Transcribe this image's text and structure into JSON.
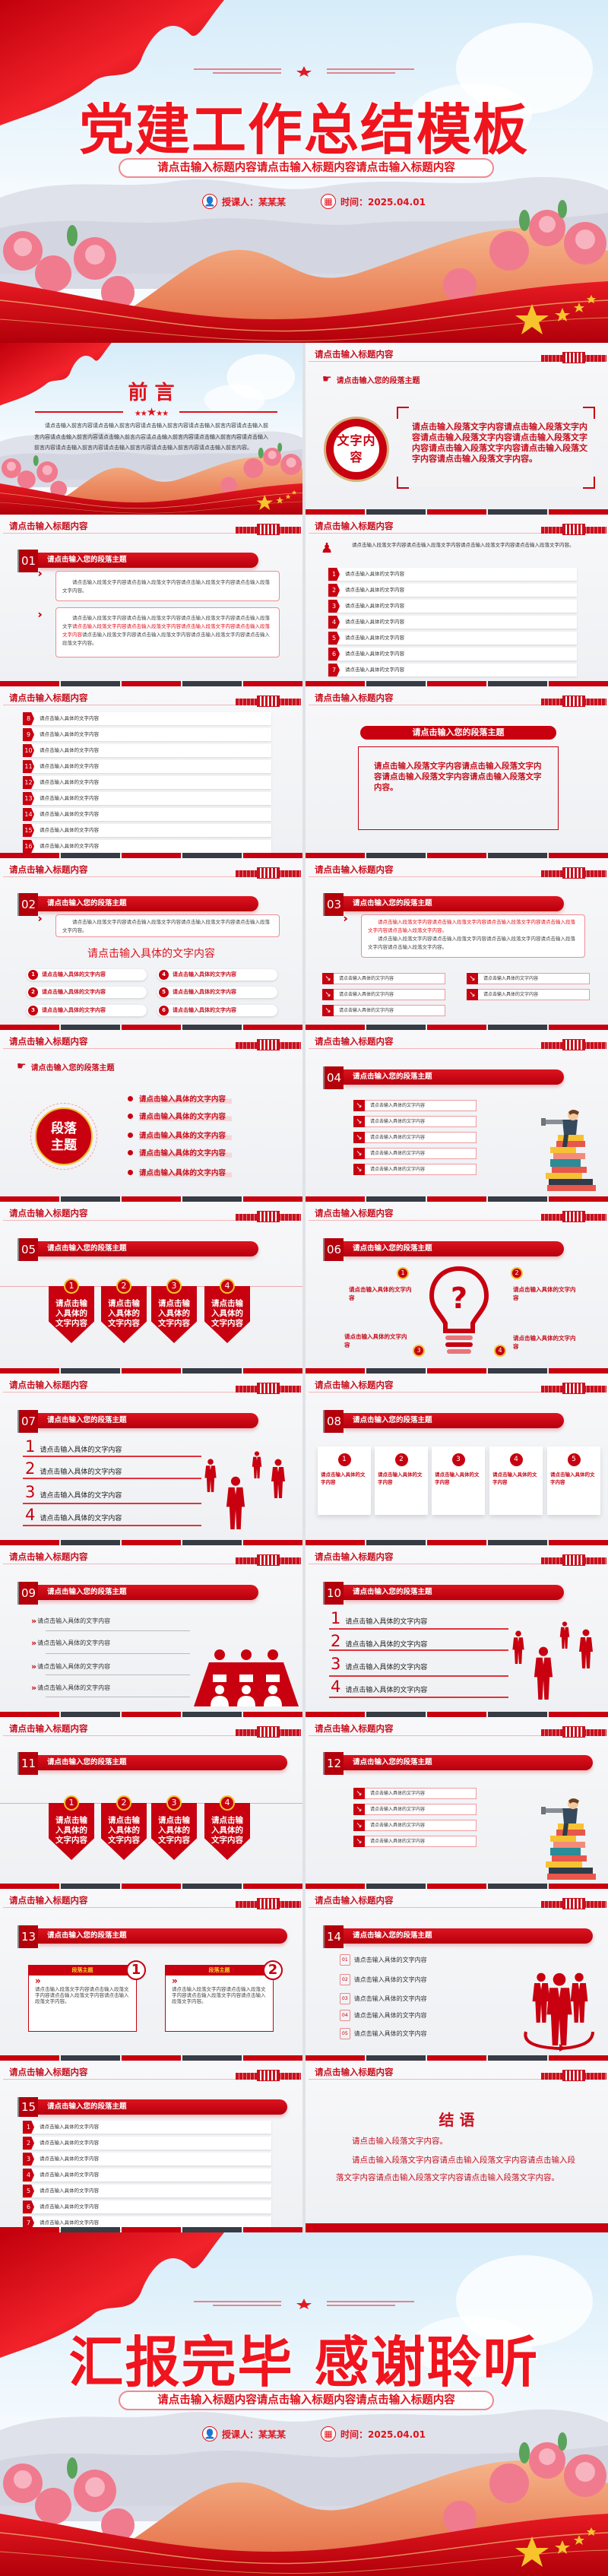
{
  "colors": {
    "primary": "#c8000f",
    "dark": "#363b44",
    "title_red": "#f0141e",
    "gold": "#f3c12a"
  },
  "cover": {
    "title": "党建工作总结模板",
    "subtitle": "请点击输入标题内容请点击输入标题内容请点击输入标题内容",
    "speaker": "授课人：某某某",
    "date": "时间：2025.04.01",
    "icons": [
      "person-icon",
      "calendar-icon"
    ]
  },
  "header_title": "请点击输入标题内容",
  "preface": {
    "title": "前 言",
    "text": "请点击输入前言内容请点击输入前言内容请点击输入前言内容请点击输入前言内容请点击输入前言内容请点击输入前言内容请点击输入前言内容请点击输入前言内容请点击输入前言内容请点击输入前言内容请点击输入前言内容请点击输入前言内容请点击输入前言内容请点击输入前言内容。"
  },
  "text_slide": {
    "theme": "请点击输入您的段落主题",
    "circle": "文字内容",
    "text": "请点击输入段落文字内容请点击输入段落文字内容请点击输入段落文字内容请点击输入段落文字内容请点击输入段落文字内容请点击输入段落文字内容请点击输入段落文字内容。"
  },
  "s01": {
    "num": "01",
    "theme": "请点击输入您的段落主题",
    "box1": "请点击输入段落文字内容请点击输入段落文字内容请点击输入段落文字内容请点击输入段落文字内容。",
    "box2_a": "请点击输入段落文字内容请点击输入段落文字内容请点击输入段落文字内容请点击输入段落文字",
    "box2_b": "请点击输入段落文字内容请点击输入段落文字内容请点击输入段落文字内容请点击输入段落文字内容",
    "box2_c": "请点击输入段落文字内容请点击输入段落文字内容请点击输入段落文字内容请点击输入段落文字内容。"
  },
  "list1": {
    "intro": "请点击输入段落文字内容请点击输入段落文字内容请点击输入段落文字内容请点击输入段落文字内容。",
    "items": [
      {
        "n": "1",
        "t": "请点击输入具体的文字内容"
      },
      {
        "n": "2",
        "t": "请点击输入具体的文字内容"
      },
      {
        "n": "3",
        "t": "请点击输入具体的文字内容"
      },
      {
        "n": "4",
        "t": "请点击输入具体的文字内容"
      },
      {
        "n": "5",
        "t": "请点击输入具体的文字内容"
      },
      {
        "n": "6",
        "t": "请点击输入具体的文字内容"
      },
      {
        "n": "7",
        "t": "请点击输入具体的文字内容"
      }
    ]
  },
  "list2": {
    "items": [
      {
        "n": "8",
        "t": "请点击输入具体的文字内容"
      },
      {
        "n": "9",
        "t": "请点击输入具体的文字内容"
      },
      {
        "n": "10",
        "t": "请点击输入具体的文字内容"
      },
      {
        "n": "11",
        "t": "请点击输入具体的文字内容"
      },
      {
        "n": "12",
        "t": "请点击输入具体的文字内容"
      },
      {
        "n": "13",
        "t": "请点击输入具体的文字内容"
      },
      {
        "n": "14",
        "t": "请点击输入具体的文字内容"
      },
      {
        "n": "15",
        "t": "请点击输入具体的文字内容"
      },
      {
        "n": "16",
        "t": "请点击输入具体的文字内容"
      }
    ]
  },
  "theme_box": {
    "theme": "请点击输入您的段落主题",
    "text": "请点击输入段落文字内容请点击输入段落文字内容请点击输入段落文字内容请点击输入段落文字内容。"
  },
  "s02": {
    "num": "02",
    "theme": "请点击输入您的段落主题",
    "box": "请点击输入段落文字内容请点击输入段落文字内容请点击输入段落文字内容请点击输入段落文字内容。",
    "heading": "请点击输入具体的文字内容",
    "pills": [
      {
        "n": "1",
        "t": "请点击输入具体的文字内容"
      },
      {
        "n": "2",
        "t": "请点击输入具体的文字内容"
      },
      {
        "n": "3",
        "t": "请点击输入具体的文字内容"
      },
      {
        "n": "4",
        "t": "请点击输入具体的文字内容"
      },
      {
        "n": "5",
        "t": "请点击输入具体的文字内容"
      },
      {
        "n": "6",
        "t": "请点击输入具体的文字内容"
      }
    ]
  },
  "s03": {
    "num": "03",
    "theme": "请点击输入您的段落主题",
    "box_red": "请点击输入段落文字内容请点击输入段落文字内容请点击输入段落文字内容请点击输入段落文字内容请点击输入段落文字内容。",
    "box_dark": "请点击输入段落文字内容请点击输入段落文字内容请点击输入段落文字内容请点击输入段落文字内容请点击输入段落文字内容。",
    "items_left": [
      "请点击输入具体的文字内容",
      "请点击输入具体的文字内容",
      "请点击输入具体的文字内容"
    ],
    "items_right": [
      "请点击输入具体的文字内容",
      "请点击输入具体的文字内容"
    ]
  },
  "para_theme": {
    "theme": "请点击输入您的段落主题",
    "circle": "段落主题",
    "bullets": [
      "请点击输入具体的文字内容",
      "请点击输入具体的文字内容",
      "请点击输入具体的文字内容",
      "请点击输入具体的文字内容",
      "请点击输入具体的文字内容"
    ]
  },
  "s04": {
    "num": "04",
    "theme": "请点击输入您的段落主题",
    "items": [
      "请点击输入具体的文字内容",
      "请点击输入具体的文字内容",
      "请点击输入具体的文字内容",
      "请点击输入具体的文字内容",
      "请点击输入具体的文字内容"
    ]
  },
  "s05": {
    "num": "05",
    "theme": "请点击输入您的段落主题",
    "shields": [
      {
        "n": "1",
        "t": "请点击输入具体的文字内容"
      },
      {
        "n": "2",
        "t": "请点击输入具体的文字内容"
      },
      {
        "n": "3",
        "t": "请点击输入具体的文字内容"
      },
      {
        "n": "4",
        "t": "请点击输入具体的文字内容"
      }
    ]
  },
  "s06": {
    "num": "06",
    "theme": "请点击输入您的段落主题",
    "symbol": "?",
    "labels": [
      {
        "n": "1",
        "t": "请点击输入具体的文字内容"
      },
      {
        "n": "2",
        "t": "请点击输入具体的文字内容"
      },
      {
        "n": "3",
        "t": "请点击输入具体的文字内容"
      },
      {
        "n": "4",
        "t": "请点击输入具体的文字内容"
      }
    ]
  },
  "s07": {
    "num": "07",
    "theme": "请点击输入您的段落主题",
    "items": [
      {
        "n": "1",
        "t": "请点击输入具体的文字内容"
      },
      {
        "n": "2",
        "t": "请点击输入具体的文字内容"
      },
      {
        "n": "3",
        "t": "请点击输入具体的文字内容"
      },
      {
        "n": "4",
        "t": "请点击输入具体的文字内容"
      }
    ]
  },
  "s08": {
    "num": "08",
    "theme": "请点击输入您的段落主题",
    "cards": [
      {
        "n": "1",
        "t": "请点击输入具体的文字内容"
      },
      {
        "n": "2",
        "t": "请点击输入具体的文字内容"
      },
      {
        "n": "3",
        "t": "请点击输入具体的文字内容"
      },
      {
        "n": "4",
        "t": "请点击输入具体的文字内容"
      },
      {
        "n": "5",
        "t": "请点击输入具体的文字内容"
      }
    ]
  },
  "s09": {
    "num": "09",
    "theme": "请点击输入您的段落主题",
    "items": [
      "请点击输入具体的文字内容",
      "请点击输入具体的文字内容",
      "请点击输入具体的文字内容",
      "请点击输入具体的文字内容"
    ]
  },
  "s10": {
    "num": "10",
    "theme": "请点击输入您的段落主题",
    "items": [
      {
        "n": "1",
        "t": "请点击输入具体的文字内容"
      },
      {
        "n": "2",
        "t": "请点击输入具体的文字内容"
      },
      {
        "n": "3",
        "t": "请点击输入具体的文字内容"
      },
      {
        "n": "4",
        "t": "请点击输入具体的文字内容"
      }
    ]
  },
  "s11": {
    "num": "11",
    "theme": "请点击输入您的段落主题",
    "shields": [
      {
        "n": "1",
        "t": "请点击输入具体的文字内容"
      },
      {
        "n": "2",
        "t": "请点击输入具体的文字内容"
      },
      {
        "n": "3",
        "t": "请点击输入具体的文字内容"
      },
      {
        "n": "4",
        "t": "请点击输入具体的文字内容"
      }
    ]
  },
  "s12": {
    "num": "12",
    "theme": "请点击输入您的段落主题",
    "items": [
      "请点击输入具体的文字内容",
      "请点击输入具体的文字内容",
      "请点击输入具体的文字内容",
      "请点击输入具体的文字内容"
    ]
  },
  "s13": {
    "num": "13",
    "theme": "请点击输入您的段落主题",
    "boxes": [
      {
        "n": "1",
        "label": "段落主题",
        "t": "请点击输入段落文字内容请点击输入段落文字内容请点击输入段落文字内容请点击输入段落文字内容。"
      },
      {
        "n": "2",
        "label": "段落主题",
        "t": "请点击输入段落文字内容请点击输入段落文字内容请点击输入段落文字内容请点击输入段落文字内容。"
      }
    ]
  },
  "s14": {
    "num": "14",
    "theme": "请点击输入您的段落主题",
    "items": [
      {
        "n": "01",
        "t": "请点击输入具体的文字内容"
      },
      {
        "n": "02",
        "t": "请点击输入具体的文字内容"
      },
      {
        "n": "03",
        "t": "请点击输入具体的文字内容"
      },
      {
        "n": "04",
        "t": "请点击输入具体的文字内容"
      },
      {
        "n": "05",
        "t": "请点击输入具体的文字内容"
      }
    ]
  },
  "s15": {
    "num": "15",
    "theme": "请点击输入您的段落主题",
    "items": [
      {
        "n": "1",
        "t": "请点击输入具体的文字内容"
      },
      {
        "n": "2",
        "t": "请点击输入具体的文字内容"
      },
      {
        "n": "3",
        "t": "请点击输入具体的文字内容"
      },
      {
        "n": "4",
        "t": "请点击输入具体的文字内容"
      },
      {
        "n": "5",
        "t": "请点击输入具体的文字内容"
      },
      {
        "n": "6",
        "t": "请点击输入具体的文字内容"
      },
      {
        "n": "7",
        "t": "请点击输入具体的文字内容"
      }
    ]
  },
  "conclusion": {
    "title": "结 语",
    "line1": "请点击输入段落文字内容。",
    "line2": "请点击输入段落文字内容请点击输入段落文字内容请点击输入段落文字内容请点击输入段落文字内容请点击输入段落文字内容。"
  },
  "ending": {
    "title": "汇报完毕 感谢聆听",
    "subtitle": "请点击输入标题内容请点击输入标题内容请点击输入标题内容",
    "speaker": "授课人：某某某",
    "date": "时间：2025.04.01"
  }
}
